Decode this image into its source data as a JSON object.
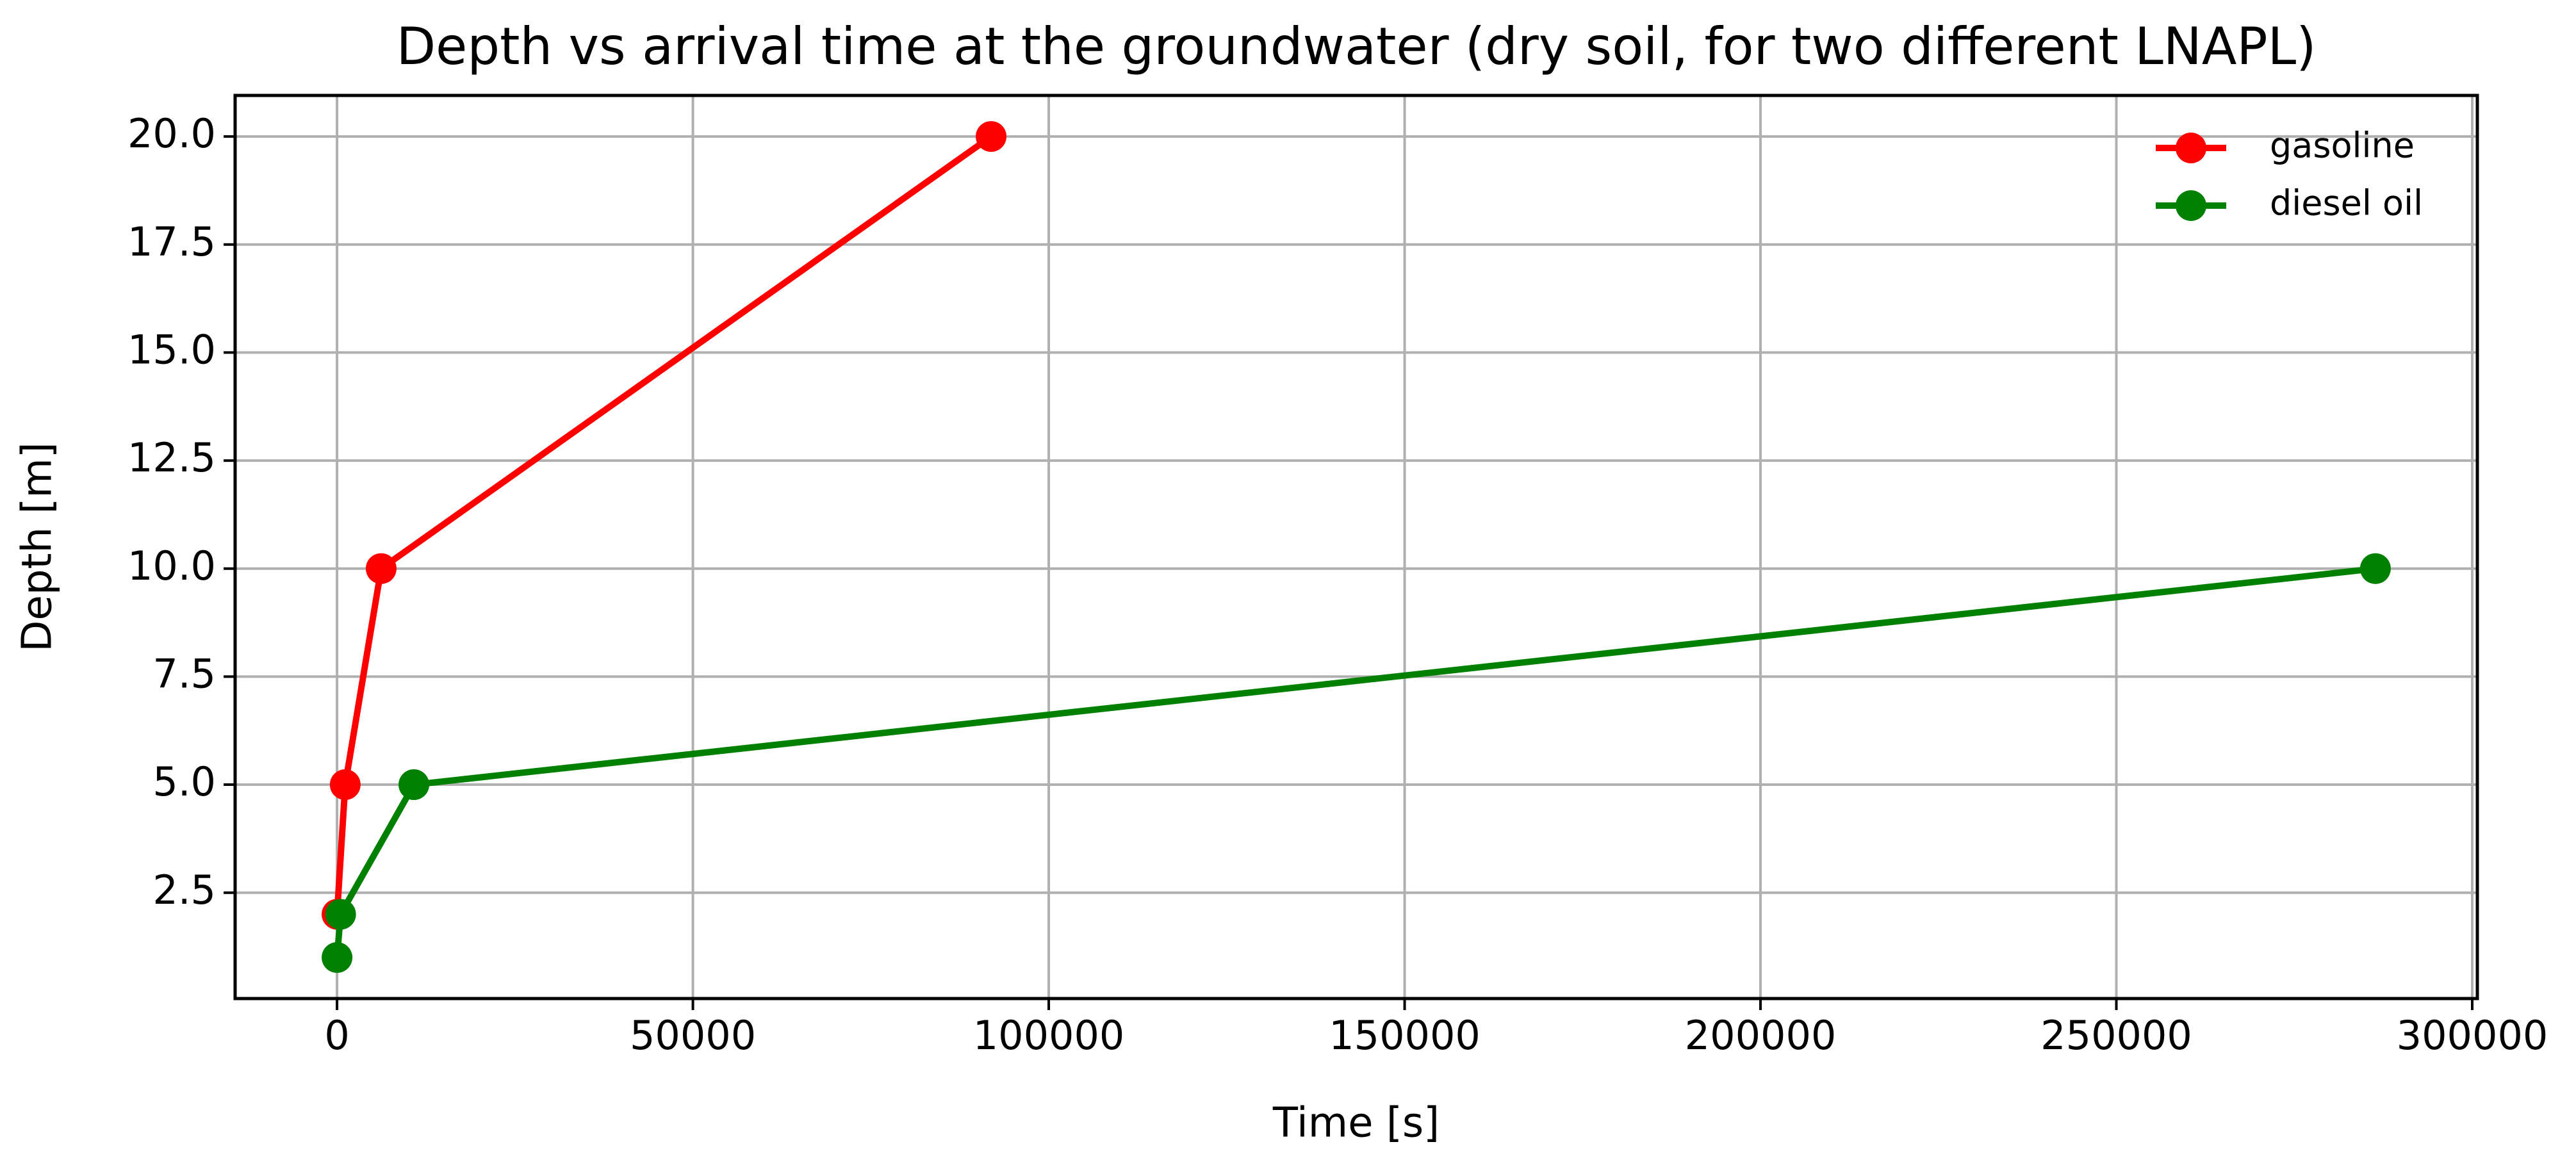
{
  "chart_data": {
    "type": "line",
    "title": "Depth vs arrival time at the groundwater (dry soil, for two different LNAPL)",
    "x_label": "Time [s]",
    "y_label": "Depth [m]",
    "series": [
      {
        "name": "gasoline",
        "color": "#ff0000",
        "x": [
          0,
          1150,
          6200,
          91900
        ],
        "values": [
          2,
          5,
          10,
          20
        ]
      },
      {
        "name": "diesel oil",
        "color": "#008000",
        "x": [
          0,
          500,
          10800,
          286400
        ],
        "values": [
          1,
          2,
          5,
          10
        ]
      }
    ],
    "xlim": [
      -14320,
      300720
    ],
    "ylim": [
      0.05,
      20.95
    ],
    "xticks": [
      0,
      50000,
      100000,
      150000,
      200000,
      250000,
      300000
    ],
    "yticks": [
      2.5,
      {
        "value": 5,
        "label": "5.0"
      },
      7.5,
      {
        "value": 10,
        "label": "10.0"
      },
      12.5,
      {
        "value": 15,
        "label": "15.0"
      },
      17.5,
      {
        "value": 20,
        "label": "20.0"
      }
    ],
    "grid": true,
    "legend": "upper right"
  }
}
